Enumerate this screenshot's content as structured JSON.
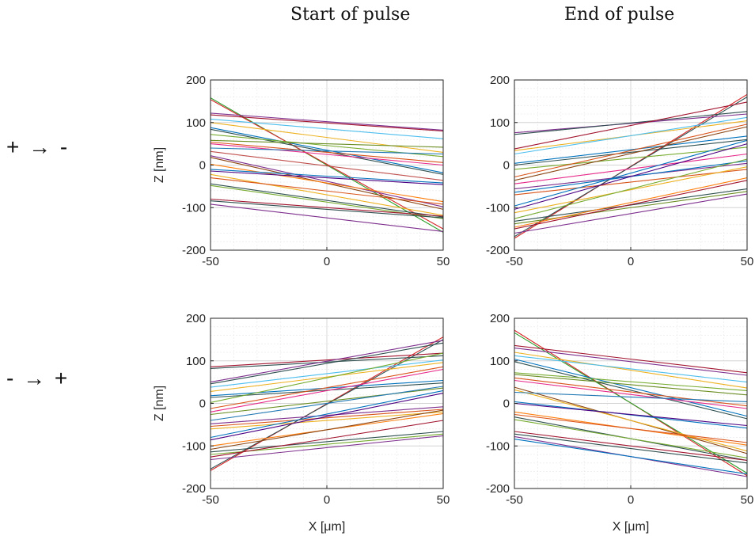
{
  "column_titles": [
    "Start of pulse",
    "End of pulse"
  ],
  "row_labels": [
    "+ → -",
    "- → +"
  ],
  "chart_data": [
    {
      "type": "line",
      "panel": "row1-col1",
      "column_title": "Start of pulse",
      "row_label": "+ → -",
      "xlabel": "",
      "ylabel": "Z [nm]",
      "xlim": [
        -50,
        50
      ],
      "ylim": [
        -200,
        200
      ],
      "xticks": [
        -50,
        0,
        50
      ],
      "yticks": [
        -200,
        -100,
        0,
        100,
        200
      ],
      "grid": true,
      "series": [
        {
          "x": [
            -50,
            50
          ],
          "y": [
            158,
            -158
          ],
          "color": "#2ca02c"
        },
        {
          "x": [
            -50,
            50
          ],
          "y": [
            154,
            -150
          ],
          "color": "#d62728"
        },
        {
          "x": [
            -50,
            50
          ],
          "y": [
            122,
            82
          ],
          "color": "#7e2f8e"
        },
        {
          "x": [
            -50,
            50
          ],
          "y": [
            118,
            80
          ],
          "color": "#a2142f"
        },
        {
          "x": [
            -50,
            50
          ],
          "y": [
            108,
            62
          ],
          "color": "#4dbeee"
        },
        {
          "x": [
            -50,
            50
          ],
          "y": [
            100,
            30
          ],
          "color": "#edb120"
        },
        {
          "x": [
            -50,
            50
          ],
          "y": [
            88,
            -18
          ],
          "color": "#0072bd"
        },
        {
          "x": [
            -50,
            50
          ],
          "y": [
            84,
            -22
          ],
          "color": "#2f4f4f"
        },
        {
          "x": [
            -50,
            50
          ],
          "y": [
            72,
            20
          ],
          "color": "#77ac30"
        },
        {
          "x": [
            -50,
            50
          ],
          "y": [
            58,
            42
          ],
          "color": "#6b8e23"
        },
        {
          "x": [
            -50,
            50
          ],
          "y": [
            54,
            6
          ],
          "color": "#d95319"
        },
        {
          "x": [
            -50,
            50
          ],
          "y": [
            50,
            0
          ],
          "color": "#e7298a"
        },
        {
          "x": [
            -50,
            50
          ],
          "y": [
            40,
            26
          ],
          "color": "#1f77b4"
        },
        {
          "x": [
            -50,
            50
          ],
          "y": [
            32,
            -36
          ],
          "color": "#c0504d"
        },
        {
          "x": [
            -50,
            50
          ],
          "y": [
            22,
            -98
          ],
          "color": "#7e2f8e"
        },
        {
          "x": [
            -50,
            50
          ],
          "y": [
            18,
            -104
          ],
          "color": "#8b4513"
        },
        {
          "x": [
            -50,
            50
          ],
          "y": [
            2,
            -86
          ],
          "color": "#ff7f0e"
        },
        {
          "x": [
            -50,
            50
          ],
          "y": [
            -10,
            -42
          ],
          "color": "#0072bd"
        },
        {
          "x": [
            -50,
            50
          ],
          "y": [
            -14,
            -46
          ],
          "color": "#4b0082"
        },
        {
          "x": [
            -50,
            50
          ],
          "y": [
            -22,
            -118
          ],
          "color": "#edb120"
        },
        {
          "x": [
            -50,
            50
          ],
          "y": [
            -30,
            -92
          ],
          "color": "#d95319"
        },
        {
          "x": [
            -50,
            50
          ],
          "y": [
            -44,
            -122
          ],
          "color": "#2f4f4f"
        },
        {
          "x": [
            -50,
            50
          ],
          "y": [
            -48,
            -126
          ],
          "color": "#77ac30"
        },
        {
          "x": [
            -50,
            50
          ],
          "y": [
            -80,
            -120
          ],
          "color": "#a2142f"
        },
        {
          "x": [
            -50,
            50
          ],
          "y": [
            -84,
            -124
          ],
          "color": "#2f4f4f"
        },
        {
          "x": [
            -50,
            50
          ],
          "y": [
            -92,
            -156
          ],
          "color": "#7e2f8e"
        }
      ]
    },
    {
      "type": "line",
      "panel": "row1-col2",
      "column_title": "End of pulse",
      "row_label": "+ → -",
      "xlabel": "",
      "ylabel": "",
      "xlim": [
        -50,
        50
      ],
      "ylim": [
        -200,
        200
      ],
      "xticks": [
        -50,
        0,
        50
      ],
      "yticks": [
        -200,
        -100,
        0,
        100,
        200
      ],
      "grid": true,
      "series": [
        {
          "x": [
            -50,
            50
          ],
          "y": [
            -172,
            166
          ],
          "color": "#d62728"
        },
        {
          "x": [
            -50,
            50
          ],
          "y": [
            -168,
            160
          ],
          "color": "#2f4f4f"
        },
        {
          "x": [
            -50,
            50
          ],
          "y": [
            76,
            120
          ],
          "color": "#7e2f8e"
        },
        {
          "x": [
            -50,
            50
          ],
          "y": [
            72,
            126
          ],
          "color": "#2f4f4f"
        },
        {
          "x": [
            -50,
            50
          ],
          "y": [
            38,
            148
          ],
          "color": "#a2142f"
        },
        {
          "x": [
            -50,
            50
          ],
          "y": [
            34,
            104
          ],
          "color": "#edb120"
        },
        {
          "x": [
            -50,
            50
          ],
          "y": [
            26,
            112
          ],
          "color": "#4dbeee"
        },
        {
          "x": [
            -50,
            50
          ],
          "y": [
            4,
            68
          ],
          "color": "#0072bd"
        },
        {
          "x": [
            -50,
            50
          ],
          "y": [
            0,
            60
          ],
          "color": "#2f4f4f"
        },
        {
          "x": [
            -50,
            50
          ],
          "y": [
            -10,
            42
          ],
          "color": "#77ac30"
        },
        {
          "x": [
            -50,
            50
          ],
          "y": [
            -28,
            96
          ],
          "color": "#d95319"
        },
        {
          "x": [
            -50,
            50
          ],
          "y": [
            -36,
            90
          ],
          "color": "#8b4513"
        },
        {
          "x": [
            -50,
            50
          ],
          "y": [
            -44,
            26
          ],
          "color": "#e7298a"
        },
        {
          "x": [
            -50,
            50
          ],
          "y": [
            -56,
            4
          ],
          "color": "#7e2f8e"
        },
        {
          "x": [
            -50,
            50
          ],
          "y": [
            -64,
            10
          ],
          "color": "#0072bd"
        },
        {
          "x": [
            -50,
            50
          ],
          "y": [
            -70,
            -10
          ],
          "color": "#d95319"
        },
        {
          "x": [
            -50,
            50
          ],
          "y": [
            -96,
            58
          ],
          "color": "#0072bd"
        },
        {
          "x": [
            -50,
            50
          ],
          "y": [
            -104,
            50
          ],
          "color": "#4b0082"
        },
        {
          "x": [
            -50,
            50
          ],
          "y": [
            -112,
            -4
          ],
          "color": "#edb120"
        },
        {
          "x": [
            -50,
            50
          ],
          "y": [
            -126,
            14
          ],
          "color": "#77ac30"
        },
        {
          "x": [
            -50,
            50
          ],
          "y": [
            -132,
            -56
          ],
          "color": "#2f4f4f"
        },
        {
          "x": [
            -50,
            50
          ],
          "y": [
            -138,
            -62
          ],
          "color": "#6b8e23"
        },
        {
          "x": [
            -50,
            50
          ],
          "y": [
            -146,
            -30
          ],
          "color": "#ff7f0e"
        },
        {
          "x": [
            -50,
            50
          ],
          "y": [
            -150,
            -36
          ],
          "color": "#a2142f"
        },
        {
          "x": [
            -50,
            50
          ],
          "y": [
            -160,
            -68
          ],
          "color": "#7e2f8e"
        }
      ]
    },
    {
      "type": "line",
      "panel": "row2-col1",
      "column_title": "Start of pulse",
      "row_label": "- → +",
      "xlabel": "X [μm]",
      "ylabel": "Z [nm]",
      "xlim": [
        -50,
        50
      ],
      "ylim": [
        -200,
        200
      ],
      "xticks": [
        -50,
        0,
        50
      ],
      "yticks": [
        -200,
        -100,
        0,
        100,
        200
      ],
      "grid": true,
      "series": [
        {
          "x": [
            -50,
            50
          ],
          "y": [
            -158,
            156
          ],
          "color": "#d62728"
        },
        {
          "x": [
            -50,
            50
          ],
          "y": [
            -154,
            150
          ],
          "color": "#2f4f4f"
        },
        {
          "x": [
            -50,
            50
          ],
          "y": [
            86,
            118
          ],
          "color": "#a2142f"
        },
        {
          "x": [
            -50,
            50
          ],
          "y": [
            82,
            112
          ],
          "color": "#2f4f4f"
        },
        {
          "x": [
            -50,
            50
          ],
          "y": [
            50,
            148
          ],
          "color": "#7e2f8e"
        },
        {
          "x": [
            -50,
            50
          ],
          "y": [
            46,
            142
          ],
          "color": "#2f4f4f"
        },
        {
          "x": [
            -50,
            50
          ],
          "y": [
            38,
            102
          ],
          "color": "#4dbeee"
        },
        {
          "x": [
            -50,
            50
          ],
          "y": [
            28,
            96
          ],
          "color": "#edb120"
        },
        {
          "x": [
            -50,
            50
          ],
          "y": [
            18,
            54
          ],
          "color": "#0072bd"
        },
        {
          "x": [
            -50,
            50
          ],
          "y": [
            14,
            48
          ],
          "color": "#2f4f4f"
        },
        {
          "x": [
            -50,
            50
          ],
          "y": [
            2,
            118
          ],
          "color": "#77ac30"
        },
        {
          "x": [
            -50,
            50
          ],
          "y": [
            -12,
            86
          ],
          "color": "#d95319"
        },
        {
          "x": [
            -50,
            50
          ],
          "y": [
            -20,
            80
          ],
          "color": "#e7298a"
        },
        {
          "x": [
            -50,
            50
          ],
          "y": [
            -26,
            36
          ],
          "color": "#6b8e23"
        },
        {
          "x": [
            -50,
            50
          ],
          "y": [
            -40,
            40
          ],
          "color": "#1f77b4"
        },
        {
          "x": [
            -50,
            50
          ],
          "y": [
            -48,
            -8
          ],
          "color": "#7e2f8e"
        },
        {
          "x": [
            -50,
            50
          ],
          "y": [
            -54,
            -14
          ],
          "color": "#d95319"
        },
        {
          "x": [
            -50,
            50
          ],
          "y": [
            -60,
            -20
          ],
          "color": "#edb120"
        },
        {
          "x": [
            -50,
            50
          ],
          "y": [
            -80,
            30
          ],
          "color": "#0072bd"
        },
        {
          "x": [
            -50,
            50
          ],
          "y": [
            -86,
            24
          ],
          "color": "#4b0082"
        },
        {
          "x": [
            -50,
            50
          ],
          "y": [
            -100,
            -24
          ],
          "color": "#ff7f0e"
        },
        {
          "x": [
            -50,
            50
          ],
          "y": [
            -108,
            -16
          ],
          "color": "#8b4513"
        },
        {
          "x": [
            -50,
            50
          ],
          "y": [
            -114,
            -66
          ],
          "color": "#2f4f4f"
        },
        {
          "x": [
            -50,
            50
          ],
          "y": [
            -120,
            -72
          ],
          "color": "#77ac30"
        },
        {
          "x": [
            -50,
            50
          ],
          "y": [
            -126,
            -40
          ],
          "color": "#a2142f"
        },
        {
          "x": [
            -50,
            50
          ],
          "y": [
            -132,
            -76
          ],
          "color": "#7e2f8e"
        }
      ]
    },
    {
      "type": "line",
      "panel": "row2-col2",
      "column_title": "End of pulse",
      "row_label": "- → +",
      "xlabel": "X [μm]",
      "ylabel": "",
      "xlim": [
        -50,
        50
      ],
      "ylim": [
        -200,
        200
      ],
      "xticks": [
        -50,
        0,
        50
      ],
      "yticks": [
        -200,
        -100,
        0,
        100,
        200
      ],
      "grid": true,
      "series": [
        {
          "x": [
            -50,
            50
          ],
          "y": [
            172,
            -170
          ],
          "color": "#d62728"
        },
        {
          "x": [
            -50,
            50
          ],
          "y": [
            166,
            -164
          ],
          "color": "#2ca02c"
        },
        {
          "x": [
            -50,
            50
          ],
          "y": [
            136,
            72
          ],
          "color": "#a2142f"
        },
        {
          "x": [
            -50,
            50
          ],
          "y": [
            130,
            66
          ],
          "color": "#7e2f8e"
        },
        {
          "x": [
            -50,
            50
          ],
          "y": [
            120,
            36
          ],
          "color": "#edb120"
        },
        {
          "x": [
            -50,
            50
          ],
          "y": [
            112,
            50
          ],
          "color": "#4dbeee"
        },
        {
          "x": [
            -50,
            50
          ],
          "y": [
            104,
            -30
          ],
          "color": "#0072bd"
        },
        {
          "x": [
            -50,
            50
          ],
          "y": [
            98,
            -36
          ],
          "color": "#2f4f4f"
        },
        {
          "x": [
            -50,
            50
          ],
          "y": [
            72,
            30
          ],
          "color": "#77ac30"
        },
        {
          "x": [
            -50,
            50
          ],
          "y": [
            68,
            20
          ],
          "color": "#6b8e23"
        },
        {
          "x": [
            -50,
            50
          ],
          "y": [
            60,
            -6
          ],
          "color": "#d95319"
        },
        {
          "x": [
            -50,
            50
          ],
          "y": [
            54,
            -12
          ],
          "color": "#e7298a"
        },
        {
          "x": [
            -50,
            50
          ],
          "y": [
            38,
            -118
          ],
          "color": "#8b4513"
        },
        {
          "x": [
            -50,
            50
          ],
          "y": [
            32,
            -112
          ],
          "color": "#edb120"
        },
        {
          "x": [
            -50,
            50
          ],
          "y": [
            26,
            4
          ],
          "color": "#1f77b4"
        },
        {
          "x": [
            -50,
            50
          ],
          "y": [
            4,
            -58
          ],
          "color": "#0072bd"
        },
        {
          "x": [
            -50,
            50
          ],
          "y": [
            0,
            -52
          ],
          "color": "#4b0082"
        },
        {
          "x": [
            -50,
            50
          ],
          "y": [
            -20,
            -98
          ],
          "color": "#ff7f0e"
        },
        {
          "x": [
            -50,
            50
          ],
          "y": [
            -26,
            -92
          ],
          "color": "#d95319"
        },
        {
          "x": [
            -50,
            50
          ],
          "y": [
            -32,
            -134
          ],
          "color": "#2f4f4f"
        },
        {
          "x": [
            -50,
            50
          ],
          "y": [
            -38,
            -128
          ],
          "color": "#77ac30"
        },
        {
          "x": [
            -50,
            50
          ],
          "y": [
            -66,
            -134
          ],
          "color": "#a2142f"
        },
        {
          "x": [
            -50,
            50
          ],
          "y": [
            -72,
            -140
          ],
          "color": "#2f4f4f"
        },
        {
          "x": [
            -50,
            50
          ],
          "y": [
            -78,
            -172
          ],
          "color": "#7e2f8e"
        },
        {
          "x": [
            -50,
            50
          ],
          "y": [
            -84,
            -166
          ],
          "color": "#0072bd"
        }
      ]
    }
  ]
}
